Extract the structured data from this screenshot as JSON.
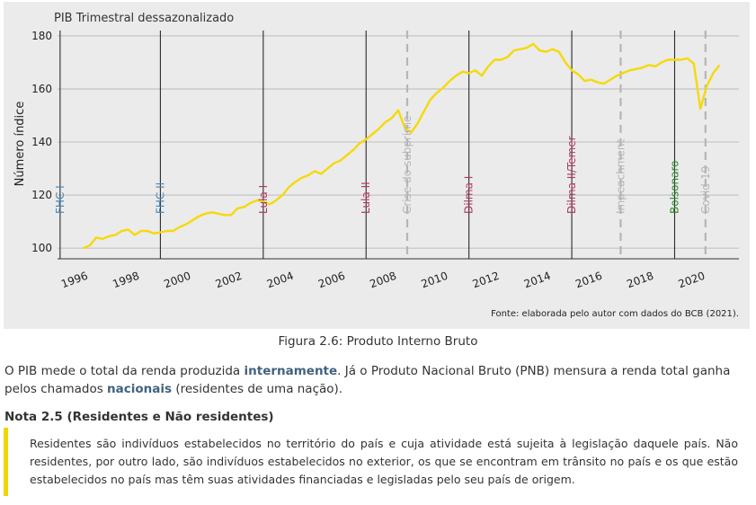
{
  "chart_data": {
    "type": "line",
    "title": "PIB Trimestral dessazonalizado",
    "ylabel": "Número índice",
    "xlabel": "",
    "xlim": [
      1995.0,
      2021.5
    ],
    "ylim": [
      96,
      182
    ],
    "yticks": [
      100,
      120,
      140,
      160,
      180
    ],
    "xticks": [
      1996,
      1998,
      2000,
      2002,
      2004,
      2006,
      2008,
      2010,
      2012,
      2014,
      2016,
      2018,
      2020
    ],
    "grid": true,
    "line_color": "#f5d90a",
    "series": [
      {
        "name": "",
        "x": [
          1996.0,
          1996.25,
          1996.5,
          1996.75,
          1997.0,
          1997.25,
          1997.5,
          1997.75,
          1998.0,
          1998.25,
          1998.5,
          1998.75,
          1999.0,
          1999.25,
          1999.5,
          1999.75,
          2000.0,
          2000.25,
          2000.5,
          2000.75,
          2001.0,
          2001.25,
          2001.5,
          2001.75,
          2002.0,
          2002.25,
          2002.5,
          2002.75,
          2003.0,
          2003.25,
          2003.5,
          2003.75,
          2004.0,
          2004.25,
          2004.5,
          2004.75,
          2005.0,
          2005.25,
          2005.5,
          2005.75,
          2006.0,
          2006.25,
          2006.5,
          2006.75,
          2007.0,
          2007.25,
          2007.5,
          2007.75,
          2008.0,
          2008.25,
          2008.5,
          2008.75,
          2009.0,
          2009.25,
          2009.5,
          2009.75,
          2010.0,
          2010.25,
          2010.5,
          2010.75,
          2011.0,
          2011.25,
          2011.5,
          2011.75,
          2012.0,
          2012.25,
          2012.5,
          2012.75,
          2013.0,
          2013.25,
          2013.5,
          2013.75,
          2014.0,
          2014.25,
          2014.5,
          2014.75,
          2015.0,
          2015.25,
          2015.5,
          2015.75,
          2016.0,
          2016.25,
          2016.5,
          2016.75,
          2017.0,
          2017.25,
          2017.5,
          2017.75,
          2018.0,
          2018.25,
          2018.5,
          2018.75,
          2019.0,
          2019.25,
          2019.5,
          2019.75,
          2020.0,
          2020.25,
          2020.5,
          2020.75
        ],
        "y": [
          100,
          101,
          104,
          103.5,
          104.5,
          105,
          106.5,
          107,
          105,
          106.5,
          106.5,
          105.5,
          106,
          106.5,
          106.5,
          108,
          109,
          110.5,
          112,
          113,
          113.5,
          113,
          112.5,
          112.5,
          115,
          115.5,
          117,
          118,
          117.5,
          116.5,
          118,
          120,
          123,
          125,
          126.5,
          127.5,
          129,
          128,
          130,
          132,
          133,
          135,
          137,
          139.5,
          141,
          143,
          145,
          147.5,
          149,
          152,
          145.5,
          143.5,
          147,
          151.5,
          156,
          158.5,
          160.5,
          163,
          165,
          166.5,
          166,
          167,
          165,
          168.5,
          171,
          171,
          172,
          174.5,
          175,
          175.5,
          177,
          174.5,
          174,
          175,
          174,
          170,
          167,
          165.5,
          163,
          163.5,
          162.5,
          162,
          163.5,
          165,
          166,
          167,
          167.5,
          168,
          169,
          168.5,
          170,
          171,
          171,
          171,
          171.5,
          169.5,
          152.5,
          161,
          166,
          169
        ]
      }
    ],
    "events": [
      {
        "label": "FHC I",
        "x": 1995.1,
        "style": "solid",
        "color": "#4a8ab8"
      },
      {
        "label": "FHC II",
        "x": 1999.0,
        "style": "solid",
        "color": "#4a8ab8"
      },
      {
        "label": "Lula I",
        "x": 2003.0,
        "style": "solid",
        "color": "#b23a5e"
      },
      {
        "label": "Lula II",
        "x": 2007.0,
        "style": "solid",
        "color": "#b23a5e"
      },
      {
        "label": "Crise do subprime",
        "x": 2008.6,
        "style": "dashed",
        "color": "#b5b5b5"
      },
      {
        "label": "Dilma I",
        "x": 2011.0,
        "style": "solid",
        "color": "#b23a5e"
      },
      {
        "label": "Dilma II/Temer",
        "x": 2015.0,
        "style": "solid",
        "color": "#b23a5e"
      },
      {
        "label": "Impeachment",
        "x": 2016.9,
        "style": "dashed",
        "color": "#b5b5b5"
      },
      {
        "label": "Bolsonaro",
        "x": 2019.0,
        "style": "solid",
        "color": "#2f8a2f"
      },
      {
        "label": "Covid-19",
        "x": 2020.2,
        "style": "dashed",
        "color": "#b5b5b5"
      }
    ],
    "source": "Fonte: elaborada pelo autor com dados do BCB (2021)."
  },
  "caption": "Figura 2.6: Produto Interno Bruto",
  "paragraph": {
    "before": "O PIB mede o total da renda produzida ",
    "highlight1": "internamente",
    "middle": ". Já o Produto Nacional Bruto (PNB) mensura a renda total ganha pelos chamados ",
    "highlight2": "nacionais",
    "after": " (residentes de uma nação)."
  },
  "note": {
    "title": "Nota 2.5 (Residentes e Não residentes)",
    "text": "Residentes são indivíduos estabelecidos no território do país e cuja atividade está sujeita à legislação daquele país. Não residentes, por outro lado, são indivíduos estabelecidos no exterior, os que se encontram em trânsito no país e os que estão estabelecidos no país mas têm suas atividades financiadas e legisladas pelo seu país de origem."
  }
}
